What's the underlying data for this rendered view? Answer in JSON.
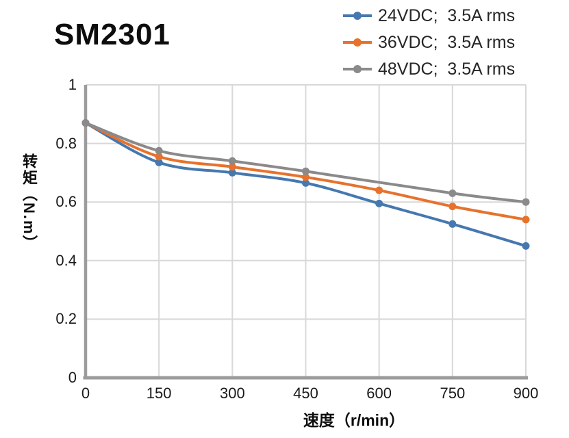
{
  "page": {
    "title": "SM2301"
  },
  "chart_data": {
    "type": "line",
    "title": "SM2301",
    "xlabel": "速度（r/min）",
    "ylabel": "转矩（N.m）",
    "xlim": [
      0,
      900
    ],
    "ylim": [
      0,
      1
    ],
    "xticks": [
      0,
      150,
      300,
      450,
      600,
      750,
      900
    ],
    "yticks": [
      1,
      0.8,
      0.6,
      0.4,
      0.2,
      0
    ],
    "grid": true,
    "legend_position": "top-right",
    "grid_color": "#d8d8d8",
    "axis_color": "#9c9c9c",
    "smooth_lines": true,
    "series": [
      {
        "name": "24VDC;  3.5A rms",
        "color": "#4678af",
        "x": [
          0,
          150,
          300,
          450,
          600,
          750,
          900
        ],
        "y": [
          0.87,
          0.735,
          0.7,
          0.665,
          0.595,
          0.525,
          0.45
        ]
      },
      {
        "name": "36VDC;  3.5A rms",
        "color": "#e6722d",
        "x": [
          0,
          150,
          300,
          450,
          600,
          750,
          900
        ],
        "y": [
          0.87,
          0.755,
          0.72,
          0.685,
          0.64,
          0.585,
          0.54
        ]
      },
      {
        "name": "48VDC;  3.5A rms",
        "color": "#8a8a8a",
        "x": [
          0,
          150,
          300,
          450,
          750,
          900
        ],
        "y": [
          0.87,
          0.775,
          0.74,
          0.705,
          0.63,
          0.6
        ]
      }
    ]
  }
}
